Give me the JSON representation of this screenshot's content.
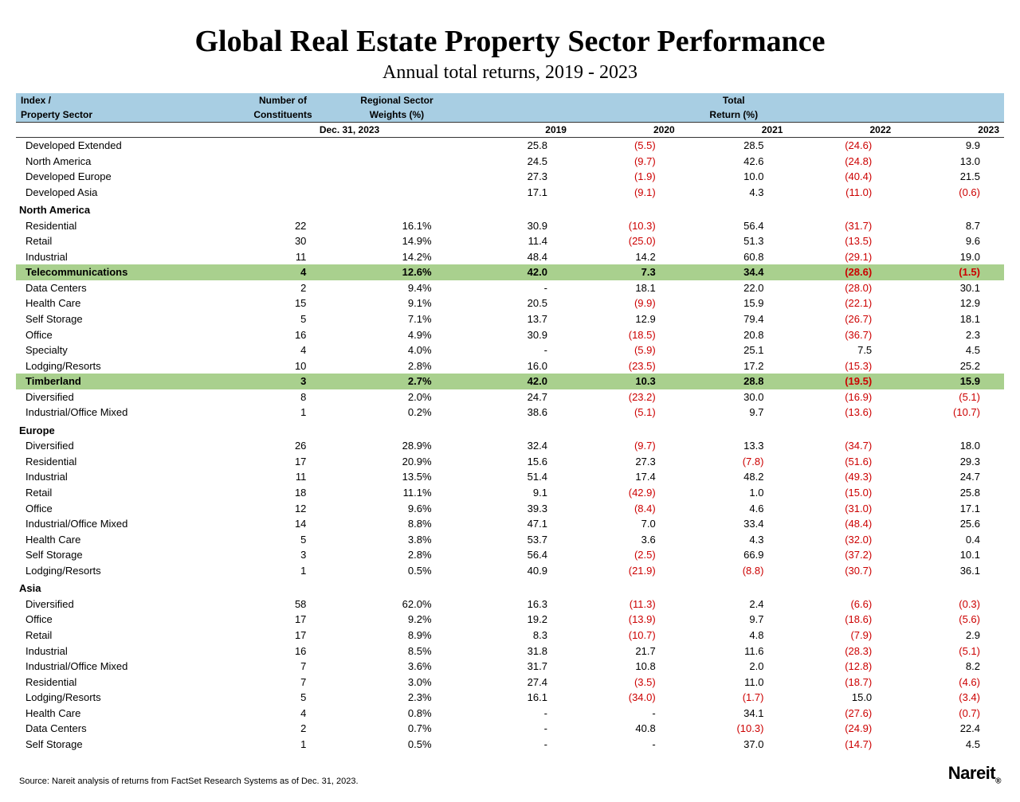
{
  "title": "Global Real Estate Property Sector Performance",
  "subtitle": "Annual total returns, 2019 - 2023",
  "header": {
    "col1_line1": "Index /",
    "col1_line2": "Property Sector",
    "col2_line1": "Number of",
    "col2_line2": "Constituents",
    "col3_line1": "Regional Sector",
    "col3_line2": "Weights (%)",
    "totals_line1": "Total",
    "totals_line2": "Return (%)",
    "date_label": "Dec. 31, 2023",
    "years": [
      "2019",
      "2020",
      "2021",
      "2022",
      "2023"
    ]
  },
  "top_rows": [
    {
      "name": "Developed Extended",
      "num": "",
      "wt": "",
      "r": [
        "25.8",
        "(5.5)",
        "28.5",
        "(24.6)",
        "9.9"
      ]
    },
    {
      "name": "North America",
      "num": "",
      "wt": "",
      "r": [
        "24.5",
        "(9.7)",
        "42.6",
        "(24.8)",
        "13.0"
      ]
    },
    {
      "name": "Developed Europe",
      "num": "",
      "wt": "",
      "r": [
        "27.3",
        "(1.9)",
        "10.0",
        "(40.4)",
        "21.5"
      ]
    },
    {
      "name": "Developed Asia",
      "num": "",
      "wt": "",
      "r": [
        "17.1",
        "(9.1)",
        "4.3",
        "(11.0)",
        "(0.6)"
      ]
    }
  ],
  "regions": [
    {
      "name": "North America",
      "rows": [
        {
          "name": "Residential",
          "num": "22",
          "wt": "16.1%",
          "r": [
            "30.9",
            "(10.3)",
            "56.4",
            "(31.7)",
            "8.7"
          ]
        },
        {
          "name": "Retail",
          "num": "30",
          "wt": "14.9%",
          "r": [
            "11.4",
            "(25.0)",
            "51.3",
            "(13.5)",
            "9.6"
          ]
        },
        {
          "name": "Industrial",
          "num": "11",
          "wt": "14.2%",
          "r": [
            "48.4",
            "14.2",
            "60.8",
            "(29.1)",
            "19.0"
          ]
        },
        {
          "name": "Telecommunications",
          "num": "4",
          "wt": "12.6%",
          "r": [
            "42.0",
            "7.3",
            "34.4",
            "(28.6)",
            "(1.5)"
          ],
          "hl": true
        },
        {
          "name": "Data Centers",
          "num": "2",
          "wt": "9.4%",
          "r": [
            "-",
            "18.1",
            "22.0",
            "(28.0)",
            "30.1"
          ]
        },
        {
          "name": "Health Care",
          "num": "15",
          "wt": "9.1%",
          "r": [
            "20.5",
            "(9.9)",
            "15.9",
            "(22.1)",
            "12.9"
          ]
        },
        {
          "name": "Self Storage",
          "num": "5",
          "wt": "7.1%",
          "r": [
            "13.7",
            "12.9",
            "79.4",
            "(26.7)",
            "18.1"
          ]
        },
        {
          "name": "Office",
          "num": "16",
          "wt": "4.9%",
          "r": [
            "30.9",
            "(18.5)",
            "20.8",
            "(36.7)",
            "2.3"
          ]
        },
        {
          "name": "Specialty",
          "num": "4",
          "wt": "4.0%",
          "r": [
            "-",
            "(5.9)",
            "25.1",
            "7.5",
            "4.5"
          ]
        },
        {
          "name": "Lodging/Resorts",
          "num": "10",
          "wt": "2.8%",
          "r": [
            "16.0",
            "(23.5)",
            "17.2",
            "(15.3)",
            "25.2"
          ]
        },
        {
          "name": "Timberland",
          "num": "3",
          "wt": "2.7%",
          "r": [
            "42.0",
            "10.3",
            "28.8",
            "(19.5)",
            "15.9"
          ],
          "hl": true
        },
        {
          "name": "Diversified",
          "num": "8",
          "wt": "2.0%",
          "r": [
            "24.7",
            "(23.2)",
            "30.0",
            "(16.9)",
            "(5.1)"
          ]
        },
        {
          "name": "Industrial/Office Mixed",
          "num": "1",
          "wt": "0.2%",
          "r": [
            "38.6",
            "(5.1)",
            "9.7",
            "(13.6)",
            "(10.7)"
          ]
        }
      ]
    },
    {
      "name": "Europe",
      "rows": [
        {
          "name": "Diversified",
          "num": "26",
          "wt": "28.9%",
          "r": [
            "32.4",
            "(9.7)",
            "13.3",
            "(34.7)",
            "18.0"
          ]
        },
        {
          "name": "Residential",
          "num": "17",
          "wt": "20.9%",
          "r": [
            "15.6",
            "27.3",
            "(7.8)",
            "(51.6)",
            "29.3"
          ]
        },
        {
          "name": "Industrial",
          "num": "11",
          "wt": "13.5%",
          "r": [
            "51.4",
            "17.4",
            "48.2",
            "(49.3)",
            "24.7"
          ]
        },
        {
          "name": "Retail",
          "num": "18",
          "wt": "11.1%",
          "r": [
            "9.1",
            "(42.9)",
            "1.0",
            "(15.0)",
            "25.8"
          ]
        },
        {
          "name": "Office",
          "num": "12",
          "wt": "9.6%",
          "r": [
            "39.3",
            "(8.4)",
            "4.6",
            "(31.0)",
            "17.1"
          ]
        },
        {
          "name": "Industrial/Office Mixed",
          "num": "14",
          "wt": "8.8%",
          "r": [
            "47.1",
            "7.0",
            "33.4",
            "(48.4)",
            "25.6"
          ]
        },
        {
          "name": "Health Care",
          "num": "5",
          "wt": "3.8%",
          "r": [
            "53.7",
            "3.6",
            "4.3",
            "(32.0)",
            "0.4"
          ]
        },
        {
          "name": "Self Storage",
          "num": "3",
          "wt": "2.8%",
          "r": [
            "56.4",
            "(2.5)",
            "66.9",
            "(37.2)",
            "10.1"
          ]
        },
        {
          "name": "Lodging/Resorts",
          "num": "1",
          "wt": "0.5%",
          "r": [
            "40.9",
            "(21.9)",
            "(8.8)",
            "(30.7)",
            "36.1"
          ]
        }
      ]
    },
    {
      "name": "Asia",
      "rows": [
        {
          "name": "Diversified",
          "num": "58",
          "wt": "62.0%",
          "r": [
            "16.3",
            "(11.3)",
            "2.4",
            "(6.6)",
            "(0.3)"
          ]
        },
        {
          "name": "Office",
          "num": "17",
          "wt": "9.2%",
          "r": [
            "19.2",
            "(13.9)",
            "9.7",
            "(18.6)",
            "(5.6)"
          ]
        },
        {
          "name": "Retail",
          "num": "17",
          "wt": "8.9%",
          "r": [
            "8.3",
            "(10.7)",
            "4.8",
            "(7.9)",
            "2.9"
          ]
        },
        {
          "name": "Industrial",
          "num": "16",
          "wt": "8.5%",
          "r": [
            "31.8",
            "21.7",
            "11.6",
            "(28.3)",
            "(5.1)"
          ]
        },
        {
          "name": "Industrial/Office Mixed",
          "num": "7",
          "wt": "3.6%",
          "r": [
            "31.7",
            "10.8",
            "2.0",
            "(12.8)",
            "8.2"
          ]
        },
        {
          "name": "Residential",
          "num": "7",
          "wt": "3.0%",
          "r": [
            "27.4",
            "(3.5)",
            "11.0",
            "(18.7)",
            "(4.6)"
          ]
        },
        {
          "name": "Lodging/Resorts",
          "num": "5",
          "wt": "2.3%",
          "r": [
            "16.1",
            "(34.0)",
            "(1.7)",
            "15.0",
            "(3.4)"
          ]
        },
        {
          "name": "Health Care",
          "num": "4",
          "wt": "0.8%",
          "r": [
            "-",
            "-",
            "34.1",
            "(27.6)",
            "(0.7)"
          ]
        },
        {
          "name": "Data Centers",
          "num": "2",
          "wt": "0.7%",
          "r": [
            "-",
            "40.8",
            "(10.3)",
            "(24.9)",
            "22.4"
          ]
        },
        {
          "name": "Self Storage",
          "num": "1",
          "wt": "0.5%",
          "r": [
            "-",
            "-",
            "37.0",
            "(14.7)",
            "4.5"
          ]
        }
      ]
    }
  ],
  "source": "Source: Nareit analysis of returns from FactSet Research Systems as of Dec. 31, 2023.",
  "logo": "Nareit",
  "colors": {
    "header_bg": "#a8cee3",
    "highlight_bg": "#a9d08e",
    "negative": "#cc0000",
    "text": "#000000",
    "background": "#ffffff"
  }
}
